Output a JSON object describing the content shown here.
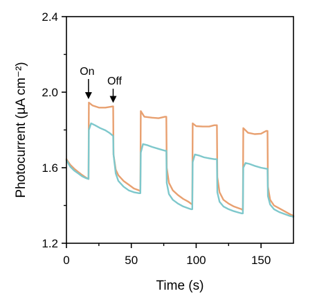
{
  "chart_data": {
    "type": "line",
    "xlabel": "Time (s)",
    "ylabel": "Photocurrent (µA cm⁻²)",
    "xlim": [
      0,
      175
    ],
    "ylim": [
      1.2,
      2.4
    ],
    "xticks": [
      0,
      50,
      100,
      150
    ],
    "yticks": [
      1.2,
      1.6,
      2.0,
      2.4
    ],
    "xtick_labels": [
      "0",
      "50",
      "100",
      "150"
    ],
    "ytick_labels": [
      "1.2",
      "1.6",
      "2.0",
      "2.4"
    ],
    "grid": false,
    "legend": null,
    "colors": {
      "orange": "#e8a070",
      "teal": "#7ec8cc",
      "axis": "#000000"
    },
    "series": [
      {
        "color": "orange",
        "x": [
          0,
          3,
          6,
          9,
          12,
          15,
          17,
          17.3,
          20,
          25,
          30,
          36,
          36.3,
          38,
          40,
          44,
          48,
          52,
          56,
          57,
          57.3,
          60,
          66,
          71,
          76,
          77,
          77.3,
          79,
          82,
          86,
          90,
          94,
          96,
          97,
          97.3,
          100,
          105,
          110,
          114,
          116,
          116.3,
          118,
          121,
          125,
          129,
          133,
          135,
          136,
          136.3,
          140,
          145,
          150,
          154,
          155,
          155.3,
          157,
          160,
          164,
          168,
          172,
          175
        ],
        "y": [
          1.645,
          1.615,
          1.595,
          1.578,
          1.562,
          1.548,
          1.54,
          1.945,
          1.93,
          1.918,
          1.918,
          1.925,
          1.67,
          1.59,
          1.56,
          1.53,
          1.51,
          1.49,
          1.48,
          1.475,
          1.9,
          1.87,
          1.865,
          1.862,
          1.87,
          1.87,
          1.6,
          1.52,
          1.48,
          1.455,
          1.435,
          1.42,
          1.41,
          1.405,
          1.835,
          1.82,
          1.818,
          1.818,
          1.825,
          1.825,
          1.55,
          1.47,
          1.43,
          1.41,
          1.395,
          1.385,
          1.38,
          1.375,
          1.81,
          1.785,
          1.778,
          1.78,
          1.795,
          1.795,
          1.5,
          1.43,
          1.4,
          1.385,
          1.37,
          1.355,
          1.345
        ]
      },
      {
        "color": "teal",
        "x": [
          0,
          3,
          6,
          9,
          12,
          15,
          17,
          17.3,
          19,
          22,
          26,
          30,
          33,
          36,
          36.3,
          38,
          40,
          44,
          48,
          52,
          56,
          57,
          57.3,
          59,
          62,
          66,
          71,
          76,
          77,
          77.3,
          79,
          82,
          86,
          90,
          94,
          96,
          97,
          97.3,
          99,
          102,
          106,
          110,
          114,
          116,
          116.3,
          118,
          121,
          125,
          129,
          133,
          135,
          136,
          136.3,
          138,
          141,
          145,
          150,
          154,
          155,
          155.3,
          157,
          160,
          164,
          168,
          172,
          175
        ],
        "y": [
          1.64,
          1.605,
          1.585,
          1.57,
          1.555,
          1.545,
          1.54,
          1.8,
          1.835,
          1.825,
          1.81,
          1.798,
          1.785,
          1.768,
          1.67,
          1.57,
          1.53,
          1.5,
          1.48,
          1.47,
          1.465,
          1.465,
          1.68,
          1.725,
          1.72,
          1.71,
          1.7,
          1.69,
          1.69,
          1.52,
          1.46,
          1.43,
          1.41,
          1.395,
          1.385,
          1.38,
          1.38,
          1.63,
          1.67,
          1.665,
          1.655,
          1.65,
          1.645,
          1.645,
          1.47,
          1.42,
          1.395,
          1.38,
          1.37,
          1.362,
          1.358,
          1.358,
          1.6,
          1.625,
          1.62,
          1.61,
          1.6,
          1.595,
          1.595,
          1.45,
          1.405,
          1.38,
          1.365,
          1.355,
          1.345,
          1.34
        ]
      }
    ],
    "annotations": [
      {
        "text": "On",
        "x": 17,
        "y": 1.945
      },
      {
        "text": "Off",
        "x": 36,
        "y": 1.925
      }
    ]
  }
}
